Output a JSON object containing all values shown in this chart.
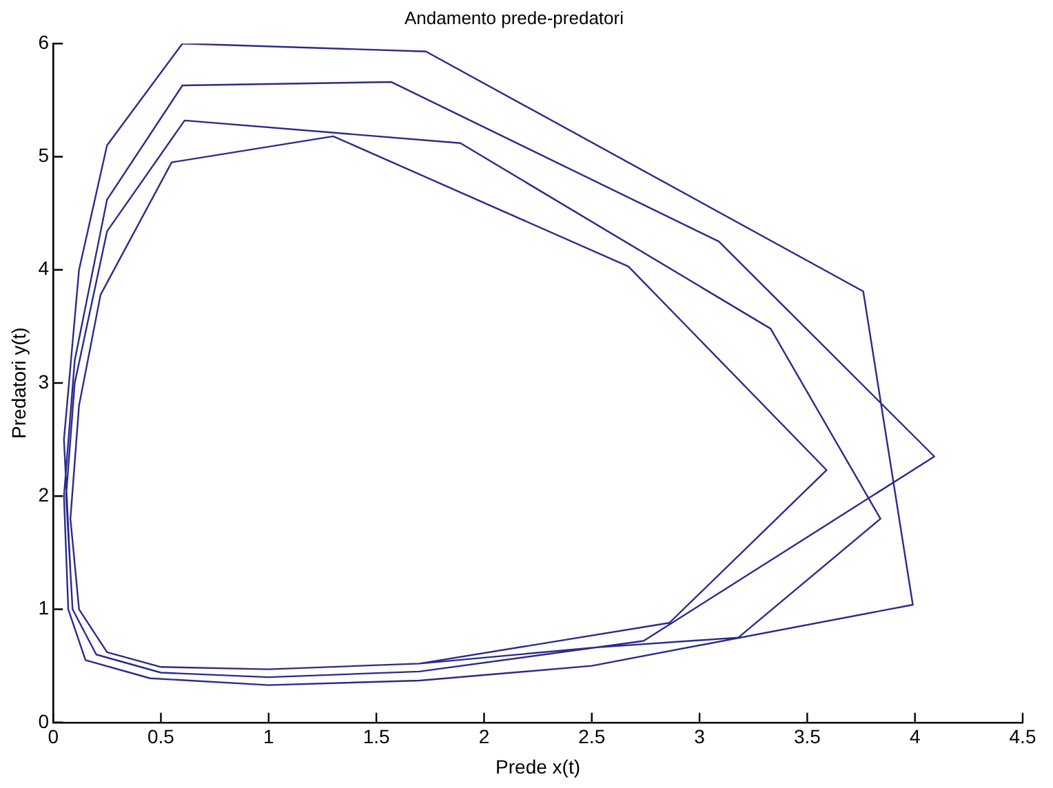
{
  "chart_data": {
    "type": "line",
    "title": "Andamento prede-predatori",
    "xlabel": "Prede x(t)",
    "ylabel": "Predatori y(t)",
    "series": [
      {
        "color": "#2a2a8c",
        "x": [
          1.7,
          2.86,
          3.59,
          2.67,
          1.3,
          0.55,
          0.22,
          0.12,
          0.08,
          0.12,
          0.25,
          0.5,
          1.0,
          1.7,
          2.5,
          3.18,
          3.84,
          3.33,
          1.89,
          0.61,
          0.25,
          0.1,
          0.06,
          0.09,
          0.2,
          0.5,
          1.0,
          1.7,
          2.74,
          4.09,
          3.09,
          1.57,
          0.6,
          0.25,
          0.1,
          0.05,
          0.07,
          0.15,
          0.45,
          1.0,
          1.7,
          2.5,
          3.99,
          3.76,
          1.73,
          0.6,
          0.25,
          0.12,
          0.05,
          0.08
        ],
        "values": [
          0.52,
          0.88,
          2.23,
          4.03,
          5.18,
          4.95,
          3.78,
          2.8,
          1.8,
          1.0,
          0.62,
          0.49,
          0.47,
          0.52,
          0.66,
          0.75,
          1.8,
          3.48,
          5.12,
          5.32,
          4.34,
          3.0,
          2.0,
          1.0,
          0.6,
          0.44,
          0.4,
          0.45,
          0.72,
          2.35,
          4.25,
          5.66,
          5.63,
          4.62,
          3.2,
          2.0,
          1.0,
          0.55,
          0.39,
          0.33,
          0.37,
          0.5,
          1.04,
          3.81,
          5.93,
          6.0,
          5.1,
          4.0,
          2.5,
          1.34
        ]
      }
    ],
    "xlim": [
      0,
      4.5
    ],
    "xticks": [
      0,
      0.5,
      1,
      1.5,
      2,
      2.5,
      3,
      3.5,
      4,
      4.5
    ],
    "ylim": [
      0,
      6
    ],
    "yticks": [
      0,
      1,
      2,
      3,
      4,
      5,
      6
    ],
    "grid": false,
    "legend": false,
    "marker": "none",
    "line_style": "solid"
  }
}
